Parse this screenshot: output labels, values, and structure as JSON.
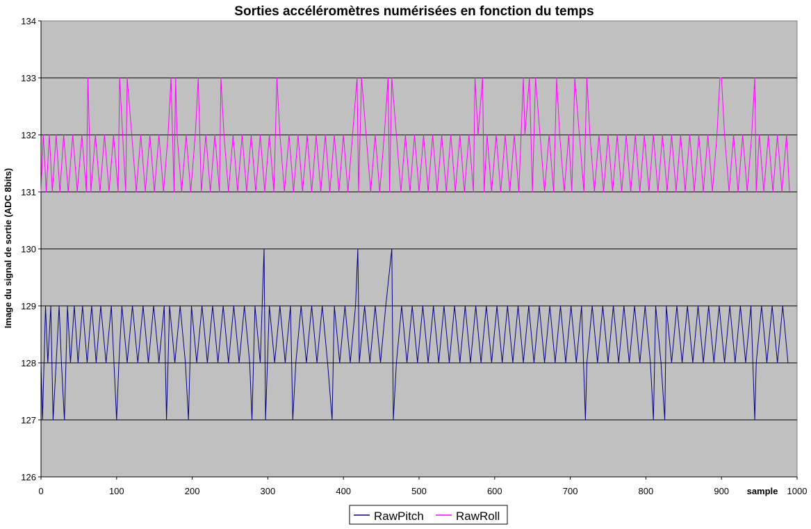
{
  "chart_data": {
    "type": "line",
    "title": "Sorties accéléromètres numérisées en fonction du temps",
    "xlabel": "sample",
    "ylabel": "Image du signal de sortie (ADC 8bits)",
    "xlim": [
      0,
      1000
    ],
    "ylim": [
      126,
      134
    ],
    "x_ticks": [
      0,
      100,
      200,
      300,
      400,
      500,
      600,
      700,
      800,
      900,
      1000
    ],
    "y_ticks": [
      126,
      127,
      128,
      129,
      130,
      131,
      132,
      133,
      134
    ],
    "grid": "horizontal",
    "legend_position": "bottom-center",
    "background": "#c0c0c0",
    "series": [
      {
        "name": "RawPitch",
        "color": "#000080",
        "x": [
          0,
          2,
          6,
          9,
          13,
          16,
          20,
          24,
          27,
          31,
          35,
          39,
          44,
          49,
          55,
          61,
          67,
          73,
          79,
          86,
          93,
          100,
          103,
          107,
          114,
          121,
          128,
          135,
          142,
          149,
          156,
          163,
          166,
          170,
          177,
          184,
          191,
          195,
          199,
          206,
          213,
          220,
          227,
          234,
          241,
          248,
          255,
          262,
          269,
          276,
          279,
          283,
          290,
          295,
          297,
          302,
          309,
          316,
          323,
          330,
          333,
          337,
          344,
          351,
          358,
          365,
          372,
          379,
          385,
          388,
          395,
          402,
          409,
          416,
          419,
          421,
          428,
          435,
          442,
          449,
          456,
          464,
          466,
          470,
          477,
          484,
          491,
          498,
          505,
          512,
          519,
          526,
          533,
          540,
          547,
          554,
          561,
          568,
          575,
          582,
          589,
          596,
          603,
          610,
          617,
          624,
          631,
          638,
          645,
          652,
          659,
          666,
          673,
          680,
          687,
          694,
          701,
          708,
          715,
          720,
          722,
          729,
          736,
          743,
          750,
          757,
          764,
          771,
          778,
          785,
          792,
          799,
          806,
          810,
          813,
          820,
          825,
          827,
          834,
          841,
          848,
          855,
          862,
          869,
          876,
          883,
          890,
          897,
          904,
          911,
          918,
          925,
          932,
          939,
          944,
          946,
          953,
          960,
          967,
          974,
          981,
          988
        ],
        "values": [
          128,
          127,
          129,
          128,
          129,
          127,
          128,
          129,
          128,
          127,
          129,
          128,
          129,
          128,
          129,
          128,
          129,
          128,
          129,
          128,
          129,
          127,
          128,
          129,
          128,
          129,
          128,
          129,
          128,
          129,
          128,
          129,
          127,
          129,
          128,
          129,
          128,
          127,
          129,
          128,
          129,
          128,
          129,
          128,
          129,
          128,
          129,
          128,
          129,
          128,
          127,
          129,
          128,
          130,
          127,
          129,
          128,
          129,
          128,
          129,
          127,
          128,
          129,
          128,
          129,
          128,
          129,
          128,
          127,
          129,
          128,
          129,
          128,
          129,
          130,
          128,
          129,
          128,
          129,
          128,
          129,
          130,
          127,
          128,
          129,
          128,
          129,
          128,
          129,
          128,
          129,
          128,
          129,
          128,
          129,
          128,
          129,
          128,
          129,
          128,
          129,
          128,
          129,
          128,
          129,
          128,
          129,
          128,
          129,
          128,
          129,
          128,
          129,
          128,
          129,
          128,
          129,
          128,
          129,
          127,
          128,
          129,
          128,
          129,
          128,
          129,
          128,
          129,
          128,
          129,
          128,
          129,
          128,
          127,
          129,
          128,
          127,
          129,
          128,
          129,
          128,
          129,
          128,
          129,
          128,
          129,
          128,
          129,
          128,
          129,
          128,
          129,
          128,
          129,
          127,
          128,
          129,
          128,
          129,
          128,
          129,
          128
        ]
      },
      {
        "name": "RawRoll",
        "color": "#ff00ff",
        "x": [
          0,
          3,
          7,
          11,
          15,
          20,
          25,
          30,
          36,
          42,
          48,
          54,
          60,
          62,
          66,
          72,
          78,
          84,
          90,
          96,
          102,
          104,
          108,
          112,
          114,
          120,
          126,
          132,
          138,
          144,
          150,
          156,
          162,
          168,
          172,
          176,
          178,
          180,
          186,
          192,
          198,
          204,
          208,
          212,
          218,
          224,
          230,
          236,
          238,
          242,
          248,
          254,
          260,
          266,
          272,
          278,
          284,
          290,
          296,
          302,
          308,
          312,
          316,
          322,
          328,
          334,
          340,
          346,
          352,
          358,
          364,
          370,
          376,
          382,
          388,
          394,
          400,
          406,
          412,
          418,
          420,
          424,
          430,
          436,
          442,
          448,
          454,
          459,
          461,
          464,
          470,
          476,
          482,
          488,
          494,
          500,
          506,
          512,
          518,
          524,
          530,
          536,
          542,
          548,
          554,
          560,
          566,
          572,
          574,
          578,
          584,
          586,
          590,
          596,
          602,
          608,
          614,
          620,
          626,
          632,
          638,
          640,
          646,
          650,
          654,
          660,
          666,
          672,
          678,
          682,
          686,
          692,
          698,
          702,
          706,
          712,
          718,
          722,
          726,
          732,
          738,
          744,
          750,
          756,
          762,
          768,
          774,
          780,
          786,
          792,
          798,
          804,
          810,
          816,
          822,
          828,
          834,
          840,
          846,
          852,
          858,
          864,
          870,
          876,
          882,
          888,
          894,
          898,
          900,
          904,
          910,
          916,
          922,
          928,
          934,
          940,
          944,
          946,
          950,
          956,
          962,
          968,
          974,
          980,
          986,
          990
        ],
        "values": [
          131,
          132,
          131,
          132,
          131,
          132,
          131,
          132,
          131,
          132,
          131,
          132,
          131,
          133,
          131,
          132,
          131,
          132,
          131,
          132,
          131,
          133,
          132,
          131,
          133,
          132,
          131,
          132,
          131,
          132,
          131,
          132,
          131,
          132,
          133,
          131,
          133,
          132,
          131,
          132,
          131,
          132,
          133,
          131,
          132,
          131,
          132,
          131,
          133,
          132,
          131,
          132,
          131,
          132,
          131,
          132,
          131,
          132,
          131,
          132,
          131,
          133,
          132,
          131,
          132,
          131,
          132,
          131,
          132,
          131,
          132,
          131,
          132,
          131,
          132,
          131,
          132,
          131,
          132,
          133,
          131,
          133,
          132,
          131,
          132,
          131,
          132,
          133,
          131,
          133,
          132,
          131,
          132,
          131,
          132,
          131,
          132,
          131,
          132,
          131,
          132,
          131,
          132,
          131,
          132,
          131,
          132,
          131,
          133,
          132,
          133,
          131,
          132,
          131,
          132,
          131,
          132,
          131,
          132,
          131,
          133,
          132,
          133,
          131,
          133,
          132,
          131,
          132,
          131,
          133,
          132,
          131,
          132,
          131,
          133,
          132,
          131,
          133,
          132,
          131,
          132,
          131,
          132,
          131,
          132,
          131,
          132,
          131,
          132,
          131,
          132,
          131,
          132,
          131,
          132,
          131,
          132,
          131,
          132,
          131,
          132,
          131,
          132,
          131,
          132,
          131,
          132,
          133,
          133,
          132,
          131,
          132,
          131,
          132,
          131,
          132,
          133,
          131,
          132,
          131,
          132,
          131,
          132,
          131,
          132,
          131
        ]
      }
    ]
  }
}
